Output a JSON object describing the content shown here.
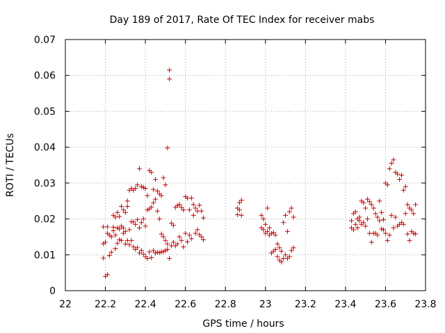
{
  "chart_data": {
    "type": "scatter",
    "title": "Day 189 of 2017, Rate Of TEC Index for receiver mabs",
    "xlabel": "GPS time / hours",
    "ylabel": "ROTI / TECUs",
    "xlim": [
      22,
      23.8
    ],
    "ylim": [
      0,
      0.07
    ],
    "xticks": [
      22,
      22.2,
      22.4,
      22.6,
      22.8,
      23,
      23.2,
      23.4,
      23.6,
      23.8
    ],
    "xtick_labels": [
      "22",
      "22.2",
      "22.4",
      "22.6",
      "22.8",
      "23",
      "23.2",
      "23.4",
      "23.6",
      "23.8"
    ],
    "yticks": [
      0,
      0.01,
      0.02,
      0.03,
      0.04,
      0.05,
      0.06,
      0.07
    ],
    "ytick_labels": [
      "0",
      "0.01",
      "0.02",
      "0.03",
      "0.04",
      "0.05",
      "0.06",
      "0.07"
    ],
    "grid": true,
    "marker": "+",
    "marker_color": "#cc0000",
    "series": [
      {
        "name": "ROTI",
        "points": [
          [
            22.19,
            0.0178
          ],
          [
            22.19,
            0.0131
          ],
          [
            22.19,
            0.0091
          ],
          [
            22.2,
            0.004
          ],
          [
            22.2,
            0.0135
          ],
          [
            22.21,
            0.016
          ],
          [
            22.21,
            0.0178
          ],
          [
            22.21,
            0.0045
          ],
          [
            22.22,
            0.0098
          ],
          [
            22.22,
            0.0155
          ],
          [
            22.23,
            0.0107
          ],
          [
            22.23,
            0.015
          ],
          [
            22.24,
            0.0167
          ],
          [
            22.24,
            0.0177
          ],
          [
            22.24,
            0.021
          ],
          [
            22.25,
            0.0117
          ],
          [
            22.25,
            0.0155
          ],
          [
            22.25,
            0.0205
          ],
          [
            22.26,
            0.0132
          ],
          [
            22.26,
            0.0175
          ],
          [
            22.26,
            0.0218
          ],
          [
            22.27,
            0.0142
          ],
          [
            22.27,
            0.0172
          ],
          [
            22.27,
            0.0207
          ],
          [
            22.28,
            0.014
          ],
          [
            22.28,
            0.018
          ],
          [
            22.28,
            0.0235
          ],
          [
            22.29,
            0.016
          ],
          [
            22.29,
            0.0175
          ],
          [
            22.29,
            0.0225
          ],
          [
            22.3,
            0.013
          ],
          [
            22.3,
            0.0165
          ],
          [
            22.3,
            0.0218
          ],
          [
            22.31,
            0.014
          ],
          [
            22.31,
            0.0235
          ],
          [
            22.31,
            0.025
          ],
          [
            22.32,
            0.0128
          ],
          [
            22.32,
            0.017
          ],
          [
            22.32,
            0.028
          ],
          [
            22.33,
            0.014
          ],
          [
            22.33,
            0.0192
          ],
          [
            22.33,
            0.0285
          ],
          [
            22.34,
            0.0122
          ],
          [
            22.34,
            0.0192
          ],
          [
            22.34,
            0.028
          ],
          [
            22.35,
            0.0115
          ],
          [
            22.35,
            0.0185
          ],
          [
            22.35,
            0.0285
          ],
          [
            22.36,
            0.012
          ],
          [
            22.36,
            0.0198
          ],
          [
            22.36,
            0.0295
          ],
          [
            22.37,
            0.0105
          ],
          [
            22.37,
            0.0175
          ],
          [
            22.37,
            0.034
          ],
          [
            22.38,
            0.0112
          ],
          [
            22.38,
            0.019
          ],
          [
            22.38,
            0.029
          ],
          [
            22.39,
            0.0102
          ],
          [
            22.39,
            0.02
          ],
          [
            22.39,
            0.0288
          ],
          [
            22.4,
            0.0095
          ],
          [
            22.4,
            0.018
          ],
          [
            22.4,
            0.0285
          ],
          [
            22.41,
            0.009
          ],
          [
            22.41,
            0.0225
          ],
          [
            22.41,
            0.0265
          ],
          [
            22.42,
            0.0108
          ],
          [
            22.42,
            0.0228
          ],
          [
            22.42,
            0.0335
          ],
          [
            22.43,
            0.0092
          ],
          [
            22.43,
            0.0233
          ],
          [
            22.43,
            0.033
          ],
          [
            22.44,
            0.0112
          ],
          [
            22.44,
            0.0245
          ],
          [
            22.44,
            0.0282
          ],
          [
            22.45,
            0.0105
          ],
          [
            22.45,
            0.0255
          ],
          [
            22.45,
            0.031
          ],
          [
            22.46,
            0.0107
          ],
          [
            22.46,
            0.0222
          ],
          [
            22.46,
            0.0278
          ],
          [
            22.47,
            0.0106
          ],
          [
            22.47,
            0.02
          ],
          [
            22.47,
            0.027
          ],
          [
            22.48,
            0.0108
          ],
          [
            22.48,
            0.0158
          ],
          [
            22.48,
            0.0265
          ],
          [
            22.49,
            0.0109
          ],
          [
            22.49,
            0.015
          ],
          [
            22.49,
            0.0315
          ],
          [
            22.5,
            0.0112
          ],
          [
            22.5,
            0.014
          ],
          [
            22.5,
            0.0295
          ],
          [
            22.51,
            0.0115
          ],
          [
            22.51,
            0.013
          ],
          [
            22.51,
            0.0398
          ],
          [
            22.52,
            0.009
          ],
          [
            22.52,
            0.059
          ],
          [
            22.52,
            0.0615
          ],
          [
            22.53,
            0.0125
          ],
          [
            22.53,
            0.0188
          ],
          [
            22.54,
            0.0135
          ],
          [
            22.54,
            0.0182
          ],
          [
            22.55,
            0.0125
          ],
          [
            22.55,
            0.0232
          ],
          [
            22.56,
            0.013
          ],
          [
            22.56,
            0.0237
          ],
          [
            22.57,
            0.015
          ],
          [
            22.57,
            0.024
          ],
          [
            22.58,
            0.014
          ],
          [
            22.58,
            0.0232
          ],
          [
            22.59,
            0.0122
          ],
          [
            22.59,
            0.0225
          ],
          [
            22.6,
            0.016
          ],
          [
            22.6,
            0.0262
          ],
          [
            22.61,
            0.0136
          ],
          [
            22.61,
            0.0258
          ],
          [
            22.62,
            0.0155
          ],
          [
            22.62,
            0.0225
          ],
          [
            22.63,
            0.0145
          ],
          [
            22.63,
            0.0258
          ],
          [
            22.64,
            0.021
          ],
          [
            22.64,
            0.024
          ],
          [
            22.65,
            0.016
          ],
          [
            22.65,
            0.023
          ],
          [
            22.66,
            0.017
          ],
          [
            22.66,
            0.0222
          ],
          [
            22.67,
            0.0156
          ],
          [
            22.67,
            0.0238
          ],
          [
            22.68,
            0.015
          ],
          [
            22.68,
            0.0222
          ],
          [
            22.69,
            0.0142
          ],
          [
            22.69,
            0.0203
          ],
          [
            22.86,
            0.023
          ],
          [
            22.86,
            0.0212
          ],
          [
            22.87,
            0.0225
          ],
          [
            22.87,
            0.0245
          ],
          [
            22.88,
            0.021
          ],
          [
            22.88,
            0.0252
          ],
          [
            22.98,
            0.021
          ],
          [
            22.98,
            0.0175
          ],
          [
            22.99,
            0.017
          ],
          [
            22.99,
            0.02
          ],
          [
            23.0,
            0.0185
          ],
          [
            23.0,
            0.016
          ],
          [
            23.01,
            0.0165
          ],
          [
            23.01,
            0.023
          ],
          [
            23.02,
            0.0155
          ],
          [
            23.02,
            0.0175
          ],
          [
            23.03,
            0.016
          ],
          [
            23.03,
            0.0105
          ],
          [
            23.04,
            0.0162
          ],
          [
            23.04,
            0.011
          ],
          [
            23.05,
            0.0155
          ],
          [
            23.05,
            0.0115
          ],
          [
            23.06,
            0.013
          ],
          [
            23.06,
            0.0095
          ],
          [
            23.07,
            0.012
          ],
          [
            23.07,
            0.0085
          ],
          [
            23.08,
            0.011
          ],
          [
            23.08,
            0.008
          ],
          [
            23.09,
            0.019
          ],
          [
            23.09,
            0.009
          ],
          [
            23.1,
            0.021
          ],
          [
            23.1,
            0.01
          ],
          [
            23.11,
            0.0165
          ],
          [
            23.11,
            0.009
          ],
          [
            23.12,
            0.022
          ],
          [
            23.12,
            0.0095
          ],
          [
            23.13,
            0.023
          ],
          [
            23.13,
            0.0112
          ],
          [
            23.14,
            0.0205
          ],
          [
            23.14,
            0.012
          ],
          [
            23.43,
            0.0175
          ],
          [
            23.43,
            0.0195
          ],
          [
            23.44,
            0.017
          ],
          [
            23.44,
            0.0215
          ],
          [
            23.45,
            0.0185
          ],
          [
            23.45,
            0.022
          ],
          [
            23.46,
            0.02
          ],
          [
            23.46,
            0.0175
          ],
          [
            23.47,
            0.0195
          ],
          [
            23.47,
            0.0205
          ],
          [
            23.48,
            0.0185
          ],
          [
            23.48,
            0.025
          ],
          [
            23.49,
            0.019
          ],
          [
            23.49,
            0.0245
          ],
          [
            23.5,
            0.018
          ],
          [
            23.5,
            0.023
          ],
          [
            23.51,
            0.02
          ],
          [
            23.51,
            0.0255
          ],
          [
            23.52,
            0.016
          ],
          [
            23.52,
            0.0248
          ],
          [
            23.53,
            0.0135
          ],
          [
            23.53,
            0.024
          ],
          [
            23.54,
            0.016
          ],
          [
            23.54,
            0.023
          ],
          [
            23.55,
            0.016
          ],
          [
            23.55,
            0.0215
          ],
          [
            23.56,
            0.0155
          ],
          [
            23.56,
            0.0205
          ],
          [
            23.57,
            0.0195
          ],
          [
            23.57,
            0.025
          ],
          [
            23.58,
            0.0172
          ],
          [
            23.58,
            0.0218
          ],
          [
            23.59,
            0.017
          ],
          [
            23.59,
            0.0198
          ],
          [
            23.6,
            0.03
          ],
          [
            23.6,
            0.016
          ],
          [
            23.61,
            0.0295
          ],
          [
            23.61,
            0.014
          ],
          [
            23.62,
            0.034
          ],
          [
            23.62,
            0.0155
          ],
          [
            23.63,
            0.0355
          ],
          [
            23.63,
            0.021
          ],
          [
            23.64,
            0.0365
          ],
          [
            23.64,
            0.0175
          ],
          [
            23.65,
            0.033
          ],
          [
            23.65,
            0.0205
          ],
          [
            23.66,
            0.0325
          ],
          [
            23.66,
            0.018
          ],
          [
            23.67,
            0.031
          ],
          [
            23.67,
            0.0185
          ],
          [
            23.68,
            0.0322
          ],
          [
            23.68,
            0.019
          ],
          [
            23.69,
            0.028
          ],
          [
            23.69,
            0.0185
          ],
          [
            23.7,
            0.029
          ],
          [
            23.7,
            0.0215
          ],
          [
            23.71,
            0.024
          ],
          [
            23.71,
            0.0158
          ],
          [
            23.72,
            0.023
          ],
          [
            23.72,
            0.014
          ],
          [
            23.73,
            0.0225
          ],
          [
            23.73,
            0.0165
          ],
          [
            23.74,
            0.0215
          ],
          [
            23.74,
            0.016
          ],
          [
            23.75,
            0.024
          ],
          [
            23.75,
            0.0158
          ]
        ]
      }
    ]
  }
}
